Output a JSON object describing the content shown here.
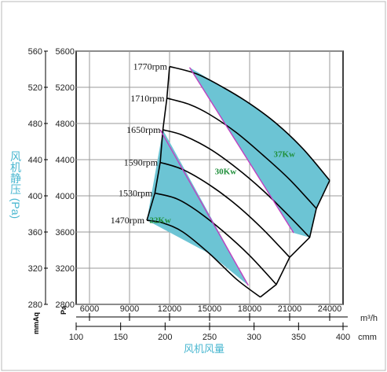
{
  "chart_data": {
    "type": "line",
    "ylabel": "风机静压 (Pa)",
    "ylabel_left_unit": "mmAq",
    "ylabel_right_unit": "Pa",
    "xlabel": "风机风量",
    "x_top_unit": "m³/h",
    "x_bottom_unit": "cmm",
    "x_top_ticks": [
      "6000",
      "9000",
      "12000",
      "15000",
      "18000",
      "21000",
      "24000"
    ],
    "x_bottom_ticks": [
      "100",
      "150",
      "200",
      "250",
      "300",
      "350",
      "400"
    ],
    "y_pa_ticks": [
      "5600",
      "5200",
      "4800",
      "4400",
      "4000",
      "3600",
      "3200",
      "2800"
    ],
    "y_mmaq_ticks": [
      "560",
      "520",
      "480",
      "440",
      "400",
      "360",
      "320",
      "280"
    ],
    "xlim": [
      5000,
      25000
    ],
    "ylim": [
      2800,
      5600
    ],
    "series": [
      {
        "name": "1770rpm",
        "x": [
          12000,
          14000,
          16000,
          18000,
          20000,
          22000,
          24000
        ],
        "y": [
          5430,
          5350,
          5200,
          5020,
          4800,
          4520,
          4170
        ]
      },
      {
        "name": "1710rpm",
        "x": [
          11800,
          13500,
          15000,
          17000,
          19000,
          21000,
          23000
        ],
        "y": [
          5080,
          5010,
          4900,
          4700,
          4450,
          4180,
          3860
        ]
      },
      {
        "name": "1650rpm",
        "x": [
          11500,
          13000,
          15000,
          17000,
          19000,
          21000,
          22500
        ],
        "y": [
          4730,
          4670,
          4520,
          4310,
          4060,
          3770,
          3540
        ]
      },
      {
        "name": "1590rpm",
        "x": [
          11300,
          13000,
          15000,
          17000,
          19000,
          21000
        ],
        "y": [
          4370,
          4290,
          4120,
          3900,
          3630,
          3320
        ]
      },
      {
        "name": "1530rpm",
        "x": [
          10900,
          12500,
          14000,
          16000,
          18000,
          20000
        ],
        "y": [
          4030,
          3970,
          3840,
          3610,
          3340,
          3020
        ]
      },
      {
        "name": "1470rpm",
        "x": [
          10300,
          11500,
          13000,
          15000,
          17000,
          18800
        ],
        "y": [
          3730,
          3700,
          3600,
          3360,
          3080,
          2880
        ]
      }
    ],
    "power_bands": [
      {
        "name": "22Kw",
        "color": "#6cc4d4"
      },
      {
        "name": "30Kw",
        "color": "#ffffff"
      },
      {
        "name": "37Kw",
        "color": "#6cc4d4"
      }
    ],
    "grid": true
  }
}
